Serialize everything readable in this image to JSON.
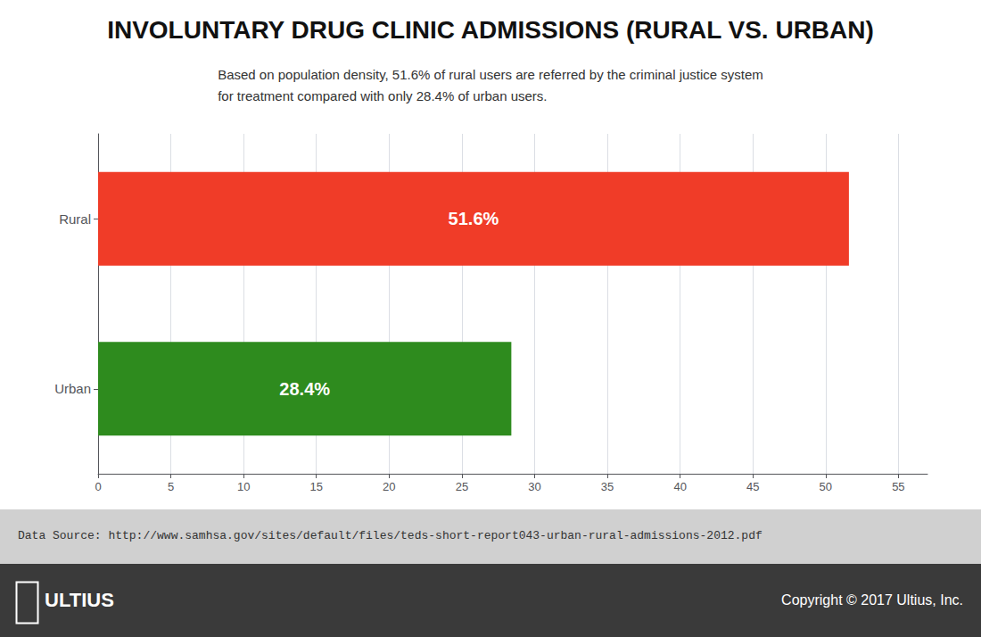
{
  "chart_data": {
    "type": "bar",
    "orientation": "horizontal",
    "title": "INVOLUNTARY DRUG CLINIC ADMISSIONS (RURAL VS. URBAN)",
    "subtitle": "Based on population density, 51.6% of rural users are referred by the criminal justice system\nfor treatment compared with only 28.4% of urban users.",
    "annotations": [
      "Data Source: http://www.samhsa.gov/sites/default/files/teds-short-report043-urban-rural-admissions-2012.pdf",
      "ULTIUS",
      "Copyright © 2017 Ultius, Inc."
    ],
    "categories": [
      "Rural",
      "Urban"
    ],
    "values": [
      51.6,
      28.4
    ],
    "value_labels": [
      "51.6%",
      "28.4%"
    ],
    "data_labels": true,
    "colors": [
      "#f03c28",
      "#2e8b1e"
    ],
    "xlim": [
      0,
      57
    ],
    "xticks": [
      0,
      5,
      10,
      15,
      20,
      25,
      30,
      35,
      40,
      45,
      50,
      55
    ],
    "grid": true
  }
}
